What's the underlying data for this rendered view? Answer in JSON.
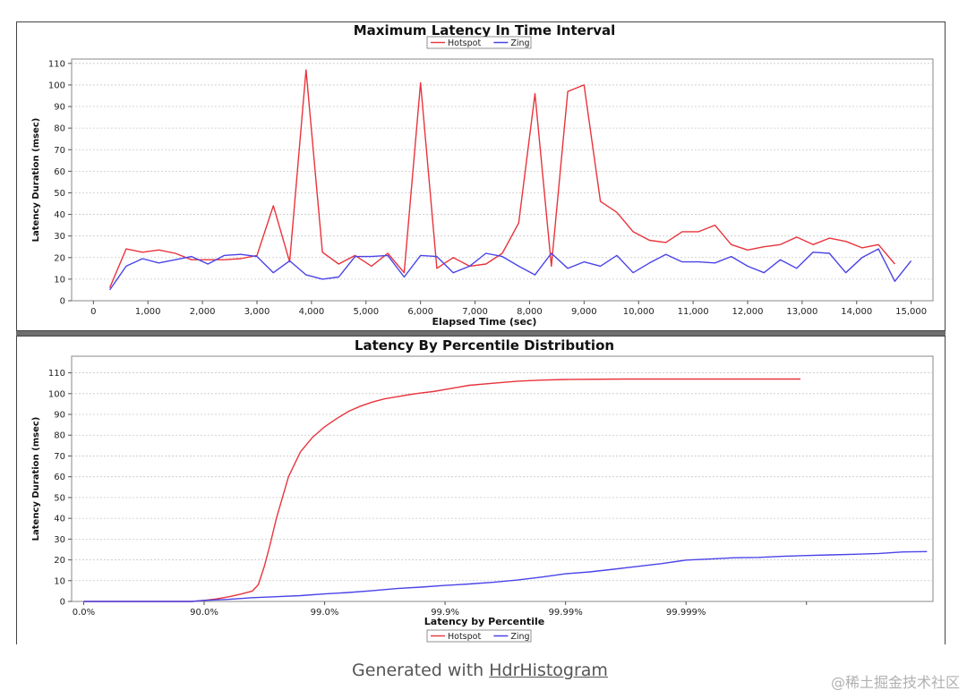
{
  "chart_data": [
    {
      "type": "line",
      "title": "Maximum Latency In Time Interval",
      "xlabel": "Elapsed Time (sec)",
      "ylabel": "Latency Duration (msec)",
      "xlim": [
        -400,
        15400
      ],
      "ylim": [
        0,
        112
      ],
      "xticks": [
        0,
        1000,
        2000,
        3000,
        4000,
        5000,
        6000,
        7000,
        8000,
        9000,
        10000,
        11000,
        12000,
        13000,
        14000,
        15000
      ],
      "xtick_labels": [
        "0",
        "1,000",
        "2,000",
        "3,000",
        "4,000",
        "5,000",
        "6,000",
        "7,000",
        "8,000",
        "9,000",
        "10,000",
        "11,000",
        "12,000",
        "13,000",
        "14,000",
        "15,000"
      ],
      "yticks": [
        0,
        10,
        20,
        30,
        40,
        50,
        60,
        70,
        80,
        90,
        100,
        110
      ],
      "grid": true,
      "legend_position": "top-center",
      "series": [
        {
          "name": "Hotspot",
          "color": "#e8343c",
          "x": [
            300,
            600,
            900,
            1200,
            1500,
            1800,
            2100,
            2400,
            2700,
            3000,
            3300,
            3600,
            3900,
            4200,
            4500,
            4800,
            5100,
            5400,
            5700,
            6000,
            6300,
            6600,
            6900,
            7200,
            7500,
            7800,
            8100,
            8400,
            8700,
            9000,
            9300,
            9600,
            9900,
            10200,
            10500,
            10800,
            11100,
            11400,
            11700,
            12000,
            12300,
            12600,
            12900,
            13200,
            13500,
            13800,
            14100,
            14400,
            14700
          ],
          "y": [
            6,
            24,
            22.5,
            23.5,
            22,
            19,
            19,
            19,
            19.5,
            21,
            44,
            18,
            107,
            22.5,
            17,
            21,
            16,
            22,
            13,
            101,
            15,
            20,
            16,
            17,
            22,
            36,
            96,
            16,
            97,
            100,
            46,
            41,
            32,
            28,
            27,
            32,
            32,
            35,
            26,
            23.5,
            25,
            26,
            29.5,
            26,
            29,
            27.5,
            24.5,
            26,
            17
          ]
        },
        {
          "name": "Zing",
          "color": "#4a44e8",
          "x": [
            300,
            600,
            900,
            1200,
            1500,
            1800,
            2100,
            2400,
            2700,
            3000,
            3300,
            3600,
            3900,
            4200,
            4500,
            4800,
            5100,
            5400,
            5700,
            6000,
            6300,
            6600,
            6900,
            7200,
            7500,
            7800,
            8100,
            8400,
            8700,
            9000,
            9300,
            9600,
            9900,
            10200,
            10500,
            10800,
            11100,
            11400,
            11700,
            12000,
            12300,
            12600,
            12900,
            13200,
            13500,
            13800,
            14100,
            14400,
            14700,
            15000
          ],
          "y": [
            5,
            16,
            19.5,
            17.5,
            19,
            20.5,
            17,
            21,
            21.5,
            20.5,
            13,
            18.5,
            12,
            10,
            11,
            20.5,
            20.5,
            21,
            11,
            21,
            20.5,
            13,
            16,
            22,
            20.5,
            16,
            12,
            22,
            15,
            18,
            16,
            21,
            13,
            17.5,
            21.5,
            18,
            18,
            17.5,
            20.5,
            16,
            13,
            19,
            15,
            22.5,
            22,
            13,
            20,
            24,
            9,
            18.5
          ]
        }
      ]
    },
    {
      "type": "line",
      "title": "Latency By Percentile Distribution",
      "xlabel": "Latency by Percentile",
      "ylabel": "Latency Duration (msec)",
      "xlim": [
        -0.1,
        7.05
      ],
      "ylim": [
        0,
        118
      ],
      "xticks": [
        0,
        1,
        2,
        3,
        4,
        5,
        6
      ],
      "xtick_labels": [
        "0.0%",
        "90.0%",
        "99.0%",
        "99.9%",
        "99.99%",
        "99.999%",
        ""
      ],
      "yticks": [
        0,
        10,
        20,
        30,
        40,
        50,
        60,
        70,
        80,
        90,
        100,
        110
      ],
      "grid": true,
      "legend_position": "bottom-center",
      "series": [
        {
          "name": "Hotspot",
          "color": "#e8343c",
          "x": [
            0,
            0.5,
            0.9,
            1.0,
            1.1,
            1.2,
            1.3,
            1.4,
            1.45,
            1.5,
            1.55,
            1.6,
            1.7,
            1.8,
            1.9,
            2.0,
            2.1,
            2.2,
            2.3,
            2.4,
            2.5,
            2.6,
            2.7,
            2.8,
            2.9,
            3.0,
            3.2,
            3.4,
            3.6,
            3.8,
            4.0,
            4.5,
            5.0,
            5.5,
            5.95
          ],
          "y": [
            0,
            0,
            0,
            0.5,
            1.2,
            2.2,
            3.5,
            5,
            8,
            17,
            28,
            40,
            60,
            72,
            79,
            84,
            88,
            91.5,
            94,
            96,
            97.5,
            98.5,
            99.5,
            100.3,
            101,
            102,
            104,
            105,
            106,
            106.5,
            106.8,
            107,
            107,
            107,
            107
          ]
        },
        {
          "name": "Zing",
          "color": "#4a44e8",
          "x": [
            0,
            0.5,
            0.9,
            1.0,
            1.2,
            1.4,
            1.6,
            1.8,
            2.0,
            2.2,
            2.4,
            2.6,
            2.8,
            3.0,
            3.2,
            3.4,
            3.6,
            3.8,
            4.0,
            4.2,
            4.4,
            4.6,
            4.8,
            5.0,
            5.2,
            5.4,
            5.6,
            5.8,
            6.0,
            6.2,
            6.4,
            6.6,
            6.8,
            7.0
          ],
          "y": [
            0,
            0,
            0,
            0.5,
            1,
            1.8,
            2.3,
            2.8,
            3.6,
            4.3,
            5.2,
            6.2,
            6.9,
            7.7,
            8.4,
            9.2,
            10.3,
            11.7,
            13.3,
            14.2,
            15.5,
            16.9,
            18.2,
            19.9,
            20.4,
            21,
            21.2,
            21.7,
            22.1,
            22.4,
            22.7,
            23.1,
            23.8,
            24
          ]
        }
      ]
    }
  ],
  "caption": {
    "prefix": "Generated with ",
    "link_text": "HdrHistogram"
  },
  "watermark": "@稀土掘金技术社区"
}
